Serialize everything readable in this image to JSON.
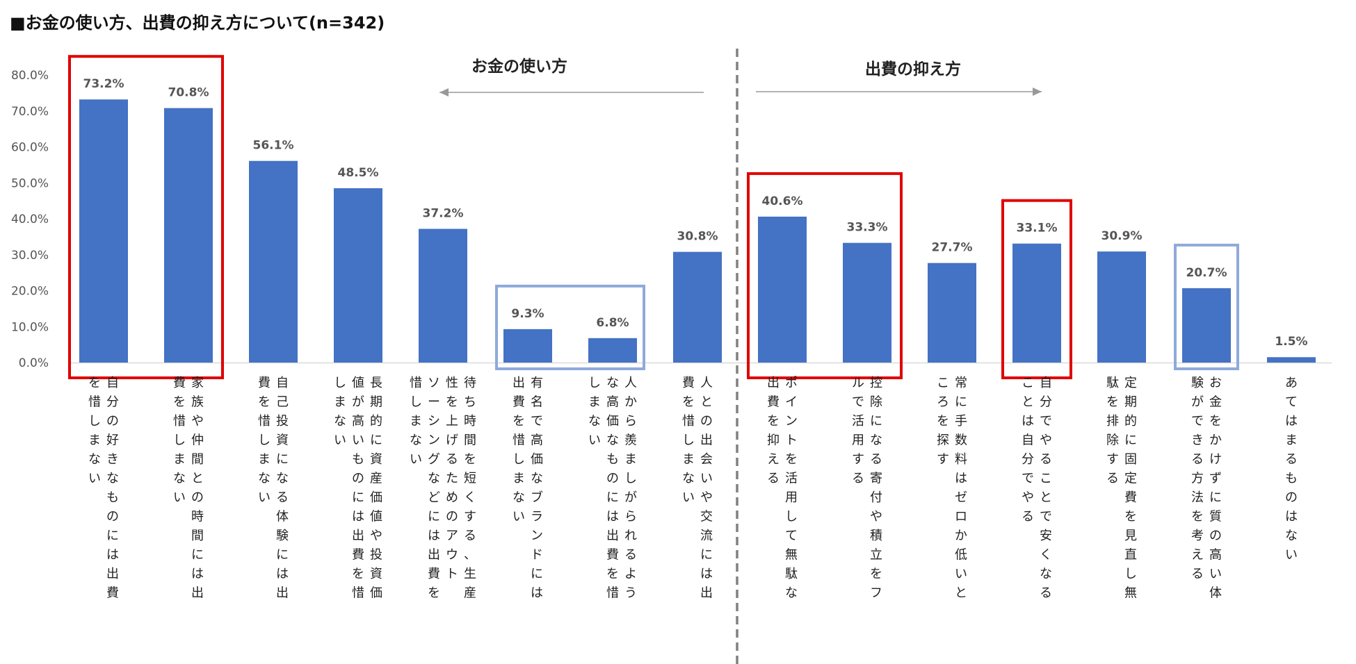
{
  "chart_data": {
    "type": "bar",
    "title": "■お金の使い方、出費の抑え方について(n=342)",
    "ylim": [
      0,
      0.8
    ],
    "yticks": [
      "0.0%",
      "10.0%",
      "20.0%",
      "30.0%",
      "40.0%",
      "50.0%",
      "60.0%",
      "70.0%",
      "80.0%"
    ],
    "grid": false,
    "bar_color": "#4472c4",
    "sections": [
      {
        "label": "お金の使い方",
        "arrow": "left"
      },
      {
        "label": "出費の抑え方",
        "arrow": "right"
      }
    ],
    "categories": [
      "自分の好きなものには出費を惜しまない",
      "家族や仲間との時間には出費を惜しまない",
      "自己投資になる体験には出費を惜しまない",
      "長期的に資産価値や投資価値が高いものには出費を惜しまない",
      "待ち時間を短くする、生産性を上げるためのアウトソーシングなどには出費を惜しまない",
      "有名で高価なブランドには出費を惜しまない",
      "人から羨ましがられるような高価なものには出費を惜しまない",
      "人との出会いや交流には出費を惜しまない",
      "ポイントを活用して無駄な出費を抑える",
      "控除になる寄付や積立をフルで活用する",
      "常に手数料はゼロか低いところを探す",
      "自分でやることで安くなることは自分でやる",
      "定期的に固定費を見直し無駄を排除する",
      "お金をかけずに質の高い体験ができる方法を考える",
      "あてはまるものはない"
    ],
    "values": [
      0.732,
      0.708,
      0.561,
      0.485,
      0.372,
      0.093,
      0.068,
      0.308,
      0.406,
      0.333,
      0.277,
      0.331,
      0.309,
      0.207,
      0.015
    ],
    "data_labels": [
      "73.2%",
      "70.8%",
      "56.1%",
      "48.5%",
      "37.2%",
      "9.3%",
      "6.8%",
      "30.8%",
      "40.6%",
      "33.3%",
      "27.7%",
      "33.1%",
      "30.9%",
      "20.7%",
      "1.5%"
    ],
    "label_columns": [
      [
        "自分の好きなものには出費",
        "を惜しまない"
      ],
      [
        "家族や仲間との時間には出",
        "費を惜しまない"
      ],
      [
        "自己投資になる体験には出",
        "費を惜しまない"
      ],
      [
        "長期的に資産価値や投資価",
        "値が高いものには出費を惜",
        "しまない"
      ],
      [
        "待ち時間を短くする、生産",
        "性を上げるためのアウト",
        "ソーシングなどには出費を",
        "惜しまない"
      ],
      [
        "有名で高価なブランドには",
        "出費を惜しまない"
      ],
      [
        "人から羨ましがられるよう",
        "な高価なものには出費を惜",
        "しまない"
      ],
      [
        "人との出会いや交流には出",
        "費を惜しまない"
      ],
      [
        "ポイントを活用して無駄な",
        "出費を抑える"
      ],
      [
        "控除になる寄付や積立をフ",
        "ルで活用する"
      ],
      [
        "常に手数料はゼロか低いと",
        "ころを探す"
      ],
      [
        "自分でやることで安くなる",
        "ことは自分でやる"
      ],
      [
        "定期的に固定費を見直し無",
        "駄を排除する"
      ],
      [
        "お金をかけずに質の高い体",
        "験ができる方法を考える"
      ],
      [
        "あてはまるものはない"
      ]
    ],
    "highlight_groups": [
      {
        "color": "#e00000",
        "categories": [
          0,
          1
        ]
      },
      {
        "color": "#8eaadb",
        "categories": [
          5,
          6
        ]
      },
      {
        "color": "#e00000",
        "categories": [
          8,
          9
        ]
      },
      {
        "color": "#e00000",
        "categories": [
          11
        ]
      },
      {
        "color": "#8eaadb",
        "categories": [
          13
        ]
      }
    ]
  }
}
